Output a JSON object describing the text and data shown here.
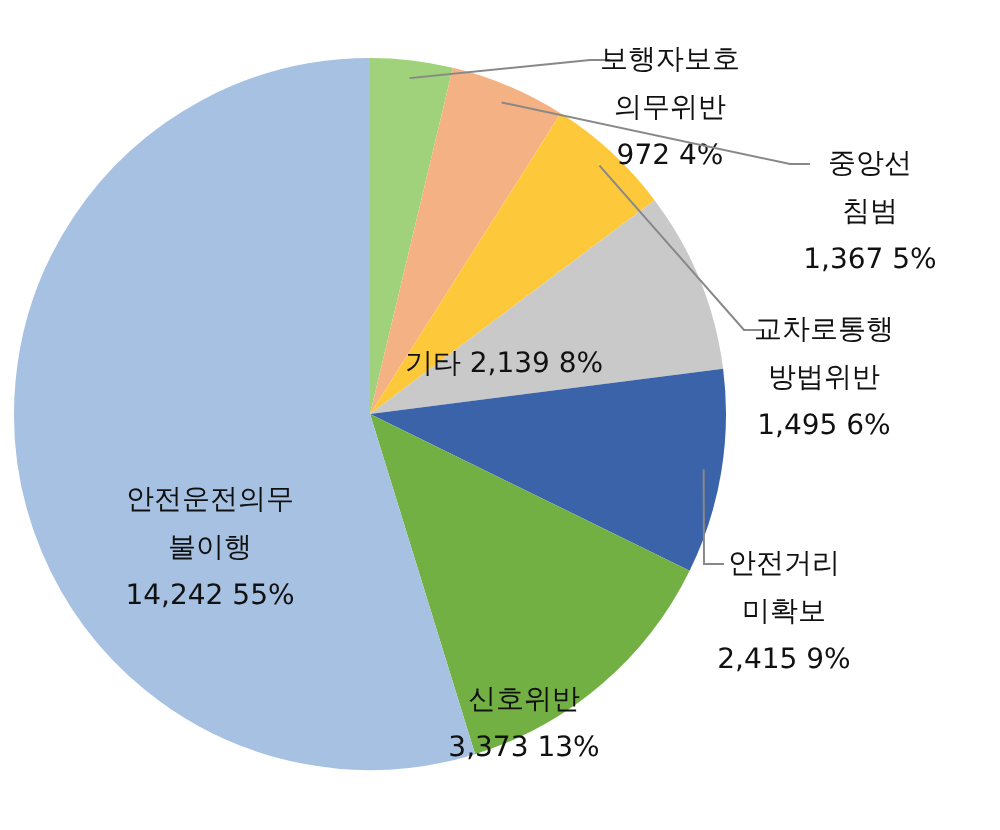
{
  "chart_data": {
    "type": "pie",
    "categories": [
      "보행자보호 의무위반",
      "중앙선 침범",
      "교차로통행 방법위반",
      "기타",
      "안전거리 미확보",
      "신호위반",
      "안전운전의무 불이행"
    ],
    "values": [
      972,
      1367,
      1495,
      2139,
      2415,
      3373,
      14242
    ],
    "value_labels": [
      "972 4%",
      "1,367 5%",
      "1,495 6%",
      "2,139 8%",
      "2,415 9%",
      "3,373 13%",
      "14,242 55%"
    ],
    "colors": [
      "#9fd27a",
      "#f4b183",
      "#fdc83a",
      "#c9c9c9",
      "#3b63a9",
      "#72b043",
      "#a6c1e1"
    ]
  }
}
